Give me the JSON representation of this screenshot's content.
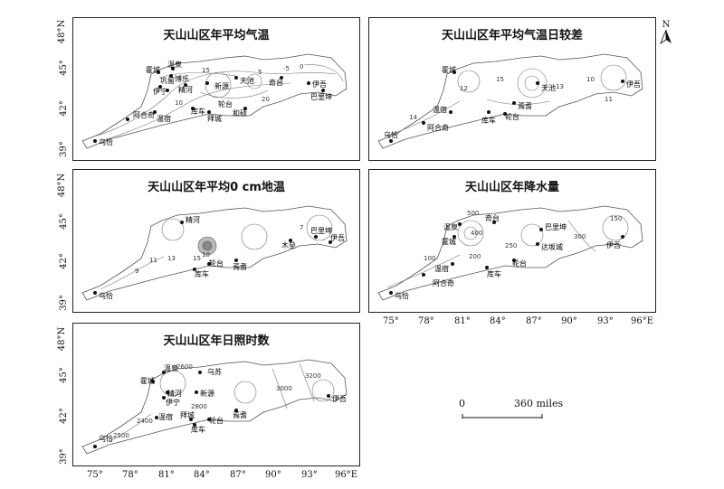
{
  "panels": [
    {
      "title": "天山山区年平均气温",
      "labels": [
        "霍城",
        "温泉",
        "博乐",
        "伊宁",
        "精河",
        "新源",
        "天池",
        "伊吾",
        "巴里坤",
        "阿合奇",
        "温宿",
        "库车",
        "拜城",
        "和硕",
        "轮台",
        "乌恰",
        "巩留",
        "奇台"
      ],
      "contours": [
        "0",
        "5",
        "10",
        "15",
        "20",
        "-5"
      ]
    },
    {
      "title": "天山山区年平均气温日较差",
      "labels": [
        "霍城",
        "天池",
        "伊吾",
        "焉耆",
        "温宿",
        "阿合奇",
        "库车",
        "轮台",
        "乌恰"
      ],
      "contours": [
        "12",
        "13",
        "14",
        "15",
        "11",
        "10"
      ]
    },
    {
      "title": "天山山区年平均0 cm地温",
      "labels": [
        "精河",
        "巴里坤",
        "伊吾",
        "木垒",
        "轮台",
        "焉耆",
        "库车",
        "乌恰"
      ],
      "contours": [
        "9",
        "11",
        "13",
        "15",
        "10",
        "7"
      ]
    },
    {
      "title": "天山山区年降水量",
      "labels": [
        "温泉",
        "霍城",
        "奇台",
        "巴里坤",
        "达坂城",
        "伊吾",
        "轮台",
        "温宿",
        "库车",
        "阿合奇",
        "乌恰"
      ],
      "contours": [
        "100",
        "200",
        "250",
        "300",
        "400",
        "500",
        "150"
      ]
    },
    {
      "title": "天山山区年日照时数",
      "labels": [
        "温泉",
        "霍城",
        "乌苏",
        "精河",
        "新源",
        "伊宁",
        "温宿",
        "拜城",
        "轮台",
        "库车",
        "焉耆",
        "伊吾",
        "乌恰"
      ],
      "contours": [
        "2600",
        "2800",
        "3000",
        "3200",
        "2400",
        "2500"
      ]
    }
  ],
  "axes": {
    "lat_ticks": [
      "48°N",
      "45°",
      "42°",
      "39°"
    ],
    "lon_ticks": [
      "75°",
      "78°",
      "81°",
      "84°",
      "87°",
      "90°",
      "93°",
      "96°E"
    ]
  },
  "scale_bar": {
    "zero": "0",
    "distance": "360 miles"
  },
  "north_arrow": {
    "label": "N"
  }
}
